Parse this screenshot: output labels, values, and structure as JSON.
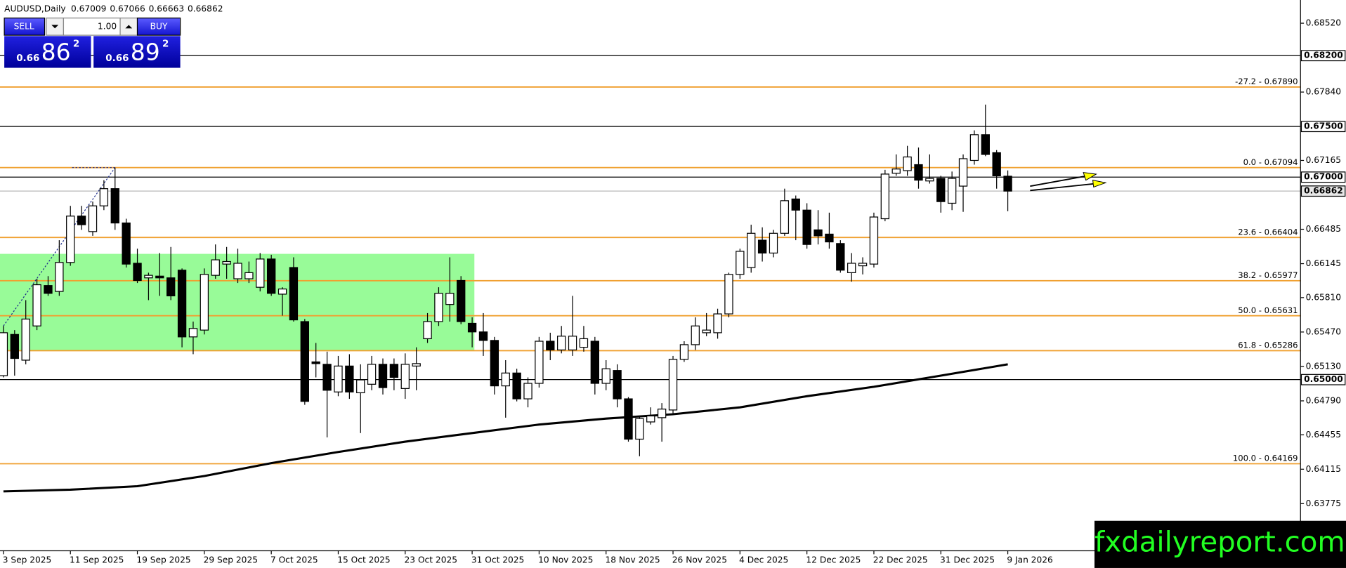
{
  "chart_data": {
    "type": "candlestick",
    "title": "AUDUSD,Daily",
    "header_values": [
      0.67009,
      0.67066,
      0.66663,
      0.66862
    ],
    "trade_panel": {
      "sell": "SELL",
      "buy": "BUY",
      "volume": "1.00",
      "bid": {
        "big": "0.66",
        "pips": "86",
        "fraction": "2"
      },
      "ask": {
        "big": "0.66",
        "pips": "89",
        "fraction": "2"
      }
    },
    "xlim": [
      -0.31,
      116.23
    ],
    "ylim": [
      0.63309,
      0.68749
    ],
    "xticks": [
      {
        "value": 0,
        "label": "3 Sep 2025"
      },
      {
        "value": 6,
        "label": "11 Sep 2025"
      },
      {
        "value": 12,
        "label": "19 Sep 2025"
      },
      {
        "value": 18,
        "label": "29 Sep 2025"
      },
      {
        "value": 24,
        "label": "7 Oct 2025"
      },
      {
        "value": 30,
        "label": "15 Oct 2025"
      },
      {
        "value": 36,
        "label": "23 Oct 2025"
      },
      {
        "value": 42,
        "label": "31 Oct 2025"
      },
      {
        "value": 48,
        "label": "10 Nov 2025"
      },
      {
        "value": 54,
        "label": "18 Nov 2025"
      },
      {
        "value": 60,
        "label": "26 Nov 2025"
      },
      {
        "value": 66,
        "label": "4 Dec 2025"
      },
      {
        "value": 72,
        "label": "12 Dec 2025"
      },
      {
        "value": 78,
        "label": "22 Dec 2025"
      },
      {
        "value": 84,
        "label": "31 Dec 2025"
      },
      {
        "value": 90,
        "label": "9 Jan 2026"
      }
    ],
    "yticks": [
      {
        "value": 0.6852,
        "label": "0.68520"
      },
      {
        "value": 0.6784,
        "label": "0.67840"
      },
      0.67165,
      0.66485,
      0.66145,
      {
        "value": 0.6581,
        "label": "0.65810"
      },
      {
        "value": 0.6547,
        "label": "0.65470"
      },
      {
        "value": 0.6513,
        "label": "0.65130"
      },
      {
        "value": 0.6479,
        "label": "0.64790"
      },
      0.64455,
      0.64115,
      0.63775
    ],
    "up_color": "#ffffff",
    "down_color": "#000000",
    "open": [
      0.65039,
      0.65446,
      0.65192,
      0.6553,
      0.65929,
      0.65871,
      0.66157,
      0.66615,
      0.66462,
      0.66716,
      0.66886,
      0.66547,
      0.66149,
      0.66005,
      0.66022,
      0.66005,
      0.66081,
      0.65422,
      0.65489,
      0.6603,
      0.66141,
      0.65996,
      0.65996,
      0.65912,
      0.66191,
      0.65844,
      0.66107,
      0.65573,
      0.65175,
      0.65151,
      0.64878,
      0.65134,
      0.6487,
      0.64954,
      0.65151,
      0.65151,
      0.64912,
      0.65134,
      0.65404,
      0.65573,
      0.65742,
      0.65979,
      0.65556,
      0.65471,
      0.65387,
      0.64938,
      0.65065,
      0.6481,
      0.64963,
      0.65379,
      0.65293,
      0.65293,
      0.65319,
      0.65379,
      0.64963,
      0.6509,
      0.6481,
      0.64412,
      0.64582,
      0.64624,
      0.647,
      0.652,
      0.65345,
      0.65463,
      0.65463,
      0.65649,
      0.66039,
      0.66107,
      0.66377,
      0.6625,
      0.66445,
      0.66784,
      0.66674,
      0.66479,
      0.66437,
      0.66344,
      0.66056,
      0.66124,
      0.66141,
      0.66589,
      0.67038,
      0.67064,
      0.67123,
      0.66962,
      0.66987,
      0.66742,
      0.66911,
      0.67165,
      0.67419,
      0.67241,
      0.67009
    ],
    "high": [
      0.6553,
      0.65489,
      0.65785,
      0.65996,
      0.66022,
      0.66377,
      0.66716,
      0.66716,
      0.66758,
      0.6697,
      0.67094,
      0.66589,
      0.66293,
      0.66056,
      0.6625,
      0.6631,
      0.66098,
      0.65573,
      0.66098,
      0.66335,
      0.6631,
      0.66293,
      0.66166,
      0.6625,
      0.66233,
      0.65912,
      0.66208,
      0.65598,
      0.65362,
      0.65276,
      0.65234,
      0.65251,
      0.65151,
      0.65234,
      0.65209,
      0.65209,
      0.65259,
      0.65319,
      0.65657,
      0.65912,
      0.66208,
      0.66022,
      0.65615,
      0.65657,
      0.65422,
      0.65192,
      0.65107,
      0.65022,
      0.65422,
      0.65463,
      0.6553,
      0.65827,
      0.6553,
      0.65422,
      0.65192,
      0.65151,
      0.64827,
      0.64641,
      0.64726,
      0.64768,
      0.65234,
      0.65379,
      0.65615,
      0.65657,
      0.657,
      0.66056,
      0.66293,
      0.6653,
      0.66504,
      0.66479,
      0.66886,
      0.66818,
      0.66742,
      0.66674,
      0.66649,
      0.66377,
      0.6625,
      0.66208,
      0.66649,
      0.67072,
      0.67224,
      0.67309,
      0.67292,
      0.67224,
      0.67013,
      0.67055,
      0.67224,
      0.67462,
      0.67716,
      0.67267,
      0.67066
    ],
    "low": [
      0.65022,
      0.65039,
      0.65151,
      0.65489,
      0.65827,
      0.65827,
      0.66124,
      0.66479,
      0.6642,
      0.66674,
      0.66479,
      0.66107,
      0.65954,
      0.65785,
      0.65827,
      0.65785,
      0.65319,
      0.65251,
      0.65446,
      0.65996,
      0.65996,
      0.65954,
      0.65954,
      0.65871,
      0.65827,
      0.65632,
      0.65573,
      0.64751,
      0.65022,
      0.64429,
      0.64836,
      0.6481,
      0.64472,
      0.64895,
      0.64853,
      0.64895,
      0.6481,
      0.64895,
      0.65362,
      0.6553,
      0.65573,
      0.65547,
      0.65319,
      0.65234,
      0.64853,
      0.64624,
      0.64785,
      0.64726,
      0.64921,
      0.65192,
      0.65259,
      0.65234,
      0.65276,
      0.64853,
      0.64895,
      0.64726,
      0.64387,
      0.64243,
      0.64556,
      0.64387,
      0.64666,
      0.65175,
      0.65293,
      0.65429,
      0.65404,
      0.65615,
      0.65996,
      0.66056,
      0.66166,
      0.66208,
      0.6642,
      0.66377,
      0.66293,
      0.66335,
      0.66293,
      0.66056,
      0.65967,
      0.66039,
      0.66107,
      0.66564,
      0.67013,
      0.67013,
      0.66886,
      0.66936,
      0.66649,
      0.66674,
      0.66657,
      0.67123,
      0.67207,
      0.66886,
      0.66663
    ],
    "close": [
      0.65463,
      0.65209,
      0.65598,
      0.65937,
      0.65852,
      0.66157,
      0.66615,
      0.6653,
      0.66716,
      0.66886,
      0.66547,
      0.66141,
      0.65979,
      0.6603,
      0.66005,
      0.65827,
      0.65422,
      0.65505,
      0.66039,
      0.66183,
      0.66166,
      0.66149,
      0.66056,
      0.66191,
      0.65852,
      0.65895,
      0.6559,
      0.64785,
      0.65158,
      0.64895,
      0.65134,
      0.64878,
      0.64997,
      0.65151,
      0.64921,
      0.65022,
      0.65151,
      0.65158,
      0.65573,
      0.65852,
      0.65852,
      0.65573,
      0.65471,
      0.65387,
      0.64938,
      0.65065,
      0.6481,
      0.64963,
      0.65379,
      0.65293,
      0.65429,
      0.65429,
      0.65404,
      0.64963,
      0.65107,
      0.6481,
      0.64412,
      0.64615,
      0.64641,
      0.64709,
      0.652,
      0.65345,
      0.6553,
      0.65489,
      0.65649,
      0.66039,
      0.66267,
      0.66445,
      0.6625,
      0.66445,
      0.66767,
      0.66674,
      0.66335,
      0.6642,
      0.6636,
      0.66081,
      0.66149,
      0.66149,
      0.66606,
      0.6703,
      0.6708,
      0.67199,
      0.6697,
      0.66987,
      0.66758,
      0.66987,
      0.67182,
      0.67419,
      0.67224,
      0.67013,
      0.66862
    ],
    "moving_average": {
      "color": "#000000",
      "x": [
        0,
        6,
        12,
        18,
        24,
        30,
        36,
        42,
        48,
        54,
        60,
        66,
        72,
        78,
        84,
        90
      ],
      "values": [
        0.63896,
        0.63913,
        0.63947,
        0.64048,
        0.64175,
        0.64285,
        0.64387,
        0.64472,
        0.64556,
        0.64615,
        0.64658,
        0.64726,
        0.64836,
        0.64929,
        0.65039,
        0.65151
      ]
    },
    "zone": {
      "color": "#98fb98",
      "x": [
        -0.31,
        42.2
      ],
      "y": [
        0.65286,
        0.66242
      ]
    },
    "levels": [
      {
        "value": 0.682,
        "label": "0.68200"
      },
      {
        "value": 0.675,
        "label": "0.67500"
      },
      {
        "value": 0.67,
        "label": "0.67000"
      },
      {
        "value": 0.65,
        "label": "0.65000"
      }
    ],
    "price_line": {
      "value": 0.66862,
      "label": "0.66862"
    },
    "fib_color": "#f0a030",
    "fib_levels": [
      {
        "value": 0.6789,
        "label": "-27.2 - 0.67890"
      },
      {
        "value": 0.67094,
        "label": "0.0 - 0.67094"
      },
      {
        "value": 0.66404,
        "label": "23.6 - 0.66404"
      },
      {
        "value": 0.65977,
        "label": "38.2 - 0.65977"
      },
      {
        "value": 0.65631,
        "label": "50.0 - 0.65631"
      },
      {
        "value": 0.65286,
        "label": "61.8 - 0.65286"
      },
      {
        "value": 0.64169,
        "label": "100.0 - 0.64169"
      }
    ],
    "watermark": "fxdailyreport.com"
  }
}
